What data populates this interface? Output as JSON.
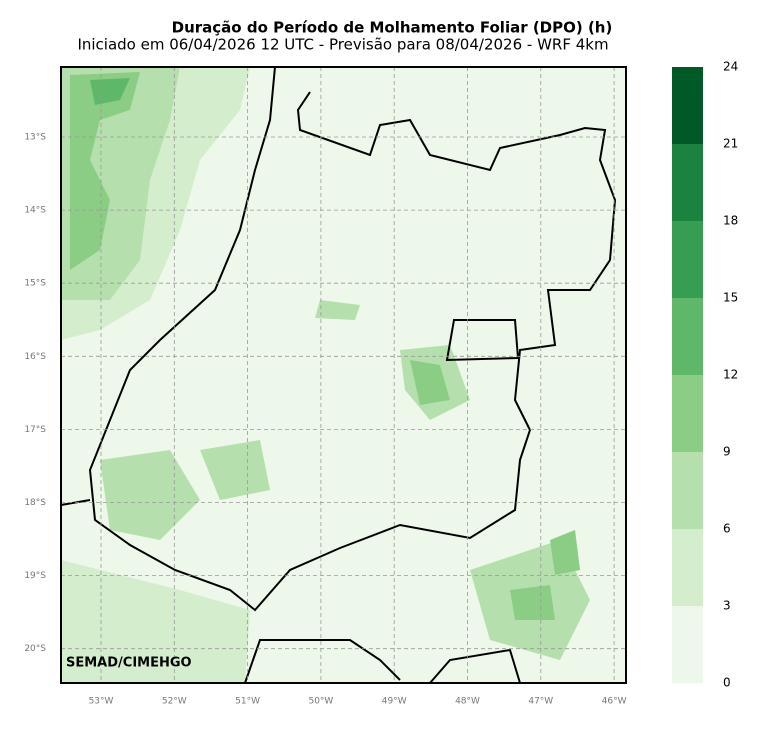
{
  "title": "Duração do Período de Molhamento Foliar (DPO) (h)",
  "subtitle": "Iniciado em 06/04/2026 12 UTC - Previsão para 08/04/2026 - WRF 4km",
  "watermark": "SEMAD/CIMEHGO",
  "map": {
    "lat_labels": [
      "13°S",
      "14°S",
      "15°S",
      "16°S",
      "17°S",
      "18°S",
      "19°S",
      "20°S"
    ],
    "lon_labels": [
      "53°W",
      "52°W",
      "51°W",
      "50°W",
      "49°W",
      "48°W",
      "47°W",
      "46°W"
    ]
  },
  "colorbar": {
    "ticks": [
      0,
      3,
      6,
      9,
      12,
      15,
      18,
      21,
      24
    ],
    "colors": [
      "#edf7ea",
      "#d4eecd",
      "#b5e0ad",
      "#8ccd85",
      "#5fb86a",
      "#379d53",
      "#1b8240",
      "#005a28"
    ]
  }
}
